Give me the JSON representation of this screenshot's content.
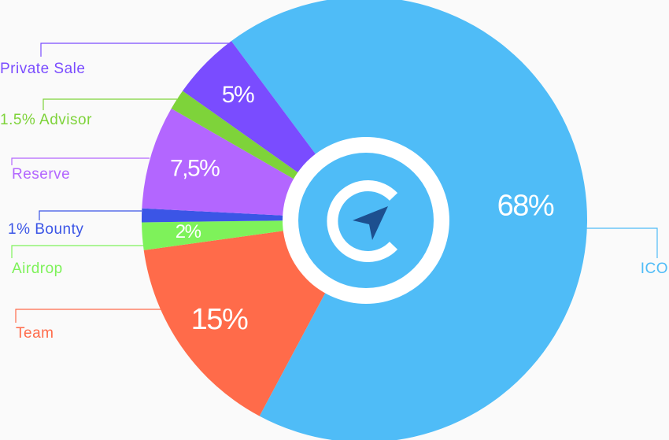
{
  "chart_data": {
    "type": "pie",
    "categories": [
      "ICO",
      "Team",
      "Airdrop",
      "1% Bounty",
      "Reserve",
      "1.5% Advisor",
      "Private Sale"
    ],
    "values": [
      68,
      15,
      2,
      1,
      7.5,
      1.5,
      5
    ],
    "value_labels": [
      "68%",
      "15%",
      "2%",
      null,
      "7,5%",
      null,
      "5%"
    ],
    "colors": [
      "#4fbcf7",
      "#ff6b4a",
      "#7ef25a",
      "#3b55e6",
      "#b366ff",
      "#7ed33a",
      "#7a4cff"
    ]
  }
}
